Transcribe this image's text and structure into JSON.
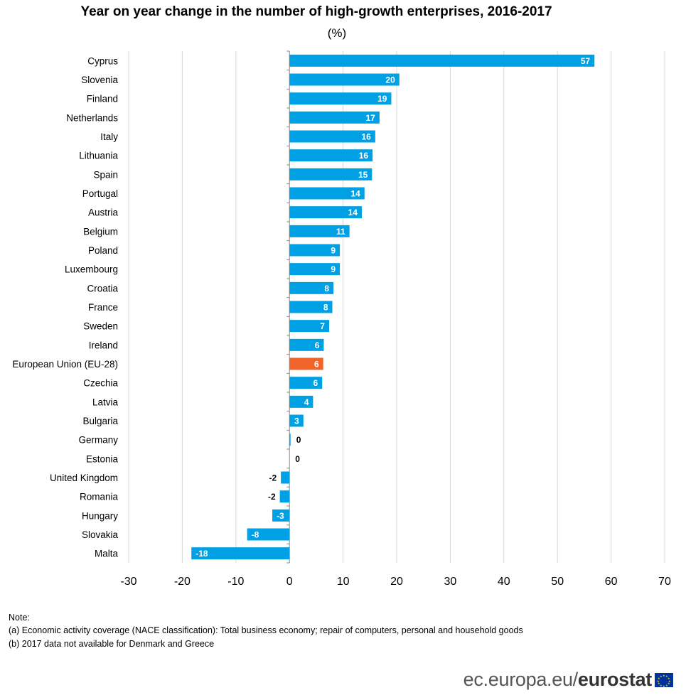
{
  "title": "Year on year change in the number of high-growth enterprises, 2016-2017",
  "subtitle": "(%)",
  "notes": {
    "heading": "Note:",
    "line_a": "(a) Economic activity coverage  (NACE classification):  Total business economy; repair of computers, personal and household goods",
    "line_b": "(b) 2017 data not available for Denmark and Greece"
  },
  "brand": {
    "prefix": "ec.europa.eu/",
    "name": "eurostat"
  },
  "colors": {
    "bar": "#00a1e4",
    "highlight": "#f0642a",
    "grid": "#d9d9d9",
    "label_in": "#ffffff",
    "label_out": "#000000"
  },
  "chart_data": {
    "type": "bar",
    "orientation": "horizontal",
    "categories": [
      "Cyprus",
      "Slovenia",
      "Finland",
      "Netherlands",
      "Italy",
      "Lithuania",
      "Spain",
      "Portugal",
      "Austria",
      "Belgium",
      "Poland",
      "Luxembourg",
      "Croatia",
      "France",
      "Sweden",
      "Ireland",
      "European Union (EU-28)",
      "Czechia",
      "Latvia",
      "Bulgaria",
      "Germany",
      "Estonia",
      "United Kingdom",
      "Romania",
      "Hungary",
      "Slovakia",
      "Malta"
    ],
    "values": [
      56.9,
      20.5,
      19.0,
      16.8,
      16.0,
      15.5,
      15.4,
      14.0,
      13.5,
      11.2,
      9.4,
      9.4,
      8.2,
      8.0,
      7.4,
      6.4,
      6.3,
      6.1,
      4.4,
      2.6,
      0.2,
      0.0,
      -1.6,
      -1.8,
      -3.2,
      -7.9,
      -18.3
    ],
    "labels": [
      "57",
      "20",
      "19",
      "17",
      "16",
      "16",
      "15",
      "14",
      "14",
      "11",
      "9",
      "9",
      "8",
      "8",
      "7",
      "6",
      "6",
      "6",
      "4",
      "3",
      "0",
      "0",
      "-2",
      "-2",
      "-3",
      "-8",
      "-18"
    ],
    "highlight": [
      "European Union (EU-28)"
    ],
    "xlim": [
      -30,
      70
    ],
    "xticks": [
      -30,
      -20,
      -10,
      0,
      10,
      20,
      30,
      40,
      50,
      60,
      70
    ],
    "grid": true,
    "legend": "none",
    "title": "Year on year change in the number of high-growth enterprises, 2016-2017",
    "xlabel": "",
    "ylabel": ""
  }
}
